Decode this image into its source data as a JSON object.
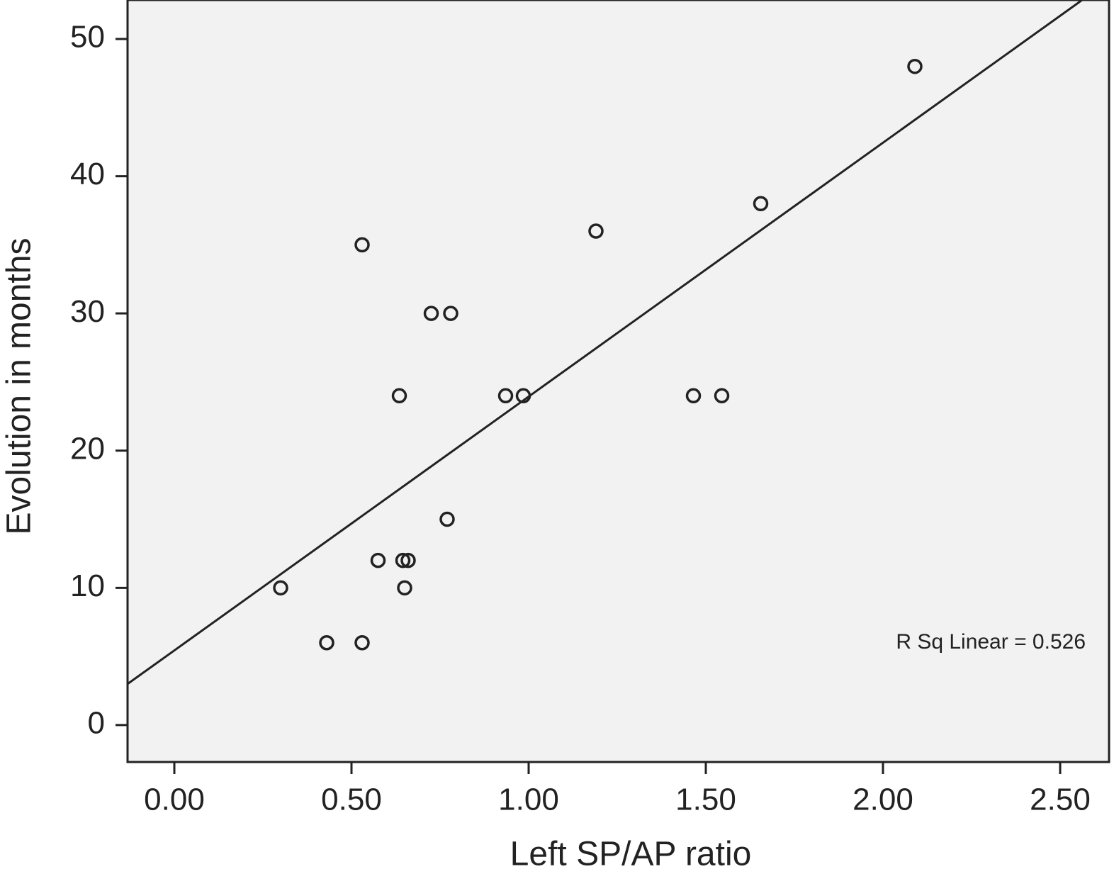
{
  "chart_data": {
    "type": "scatter",
    "xlabel": "Left SP/AP ratio",
    "ylabel": "Evolution in months",
    "annotation": "R Sq Linear = 0.526",
    "x": [
      0.3,
      0.43,
      0.53,
      0.53,
      0.575,
      0.635,
      0.645,
      0.66,
      0.65,
      0.725,
      0.78,
      0.77,
      0.935,
      0.985,
      1.19,
      1.465,
      1.545,
      1.655,
      2.09
    ],
    "values": [
      10,
      6,
      6,
      35,
      12,
      24,
      12,
      12,
      10,
      30,
      30,
      15,
      24,
      24,
      36,
      24,
      24,
      38,
      48
    ],
    "color": "#222222",
    "trendline": {
      "intercept": 5.44,
      "slope": 18.5
    },
    "xlim": [
      -0.132,
      2.638
    ],
    "ylim": [
      -2.69,
      52.84
    ],
    "xticks": [
      {
        "value": 0,
        "label": "0.00"
      },
      {
        "value": 0.5,
        "label": "0.50"
      },
      {
        "value": 1,
        "label": "1.00"
      },
      {
        "value": 1.5,
        "label": "1.50"
      },
      {
        "value": 2,
        "label": "2.00"
      },
      {
        "value": 2.5,
        "label": "2.50"
      }
    ],
    "yticks": [
      0,
      10,
      20,
      30,
      40,
      50
    ]
  }
}
